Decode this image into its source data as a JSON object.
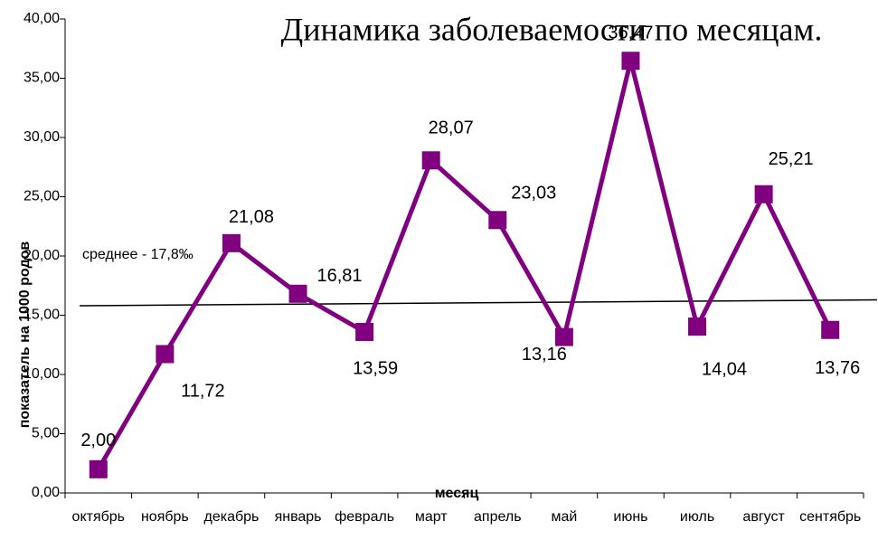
{
  "chart_data": {
    "type": "line",
    "title": "Динамика заболеваемости по месяцам.",
    "x_label": "месяц",
    "y_label": "показатель на 1000 родов",
    "annotation": "среднее - 17,8‰",
    "categories": [
      "октябрь",
      "ноябрь",
      "декабрь",
      "январь",
      "февраль",
      "март",
      "апрель",
      "май",
      "июнь",
      "июль",
      "август",
      "сентябрь"
    ],
    "series": [
      {
        "name": "показатель",
        "color": "#800080",
        "values": [
          2.0,
          11.72,
          21.08,
          16.81,
          13.59,
          28.07,
          23.03,
          13.16,
          36.47,
          14.04,
          25.21,
          13.76
        ],
        "value_labels": [
          "2,00",
          "11,72",
          "21,08",
          "16,81",
          "13,59",
          "28,07",
          "23,03",
          "13,16",
          "36,47",
          "14,04",
          "25,21",
          "13,76"
        ]
      }
    ],
    "trend_line": {
      "start": 15.8,
      "end": 16.3,
      "color": "#000000"
    },
    "ylim": [
      0,
      40
    ],
    "yticks": [
      {
        "value": 0,
        "label": "0,00"
      },
      {
        "value": 5,
        "label": "5,00"
      },
      {
        "value": 10,
        "label": "10,00"
      },
      {
        "value": 15,
        "label": "15,00"
      },
      {
        "value": 20,
        "label": "20,00"
      },
      {
        "value": 25,
        "label": "25,00"
      },
      {
        "value": 30,
        "label": "30,00"
      },
      {
        "value": 35,
        "label": "35,00"
      },
      {
        "value": 40,
        "label": "40,00"
      }
    ],
    "grid": false
  }
}
